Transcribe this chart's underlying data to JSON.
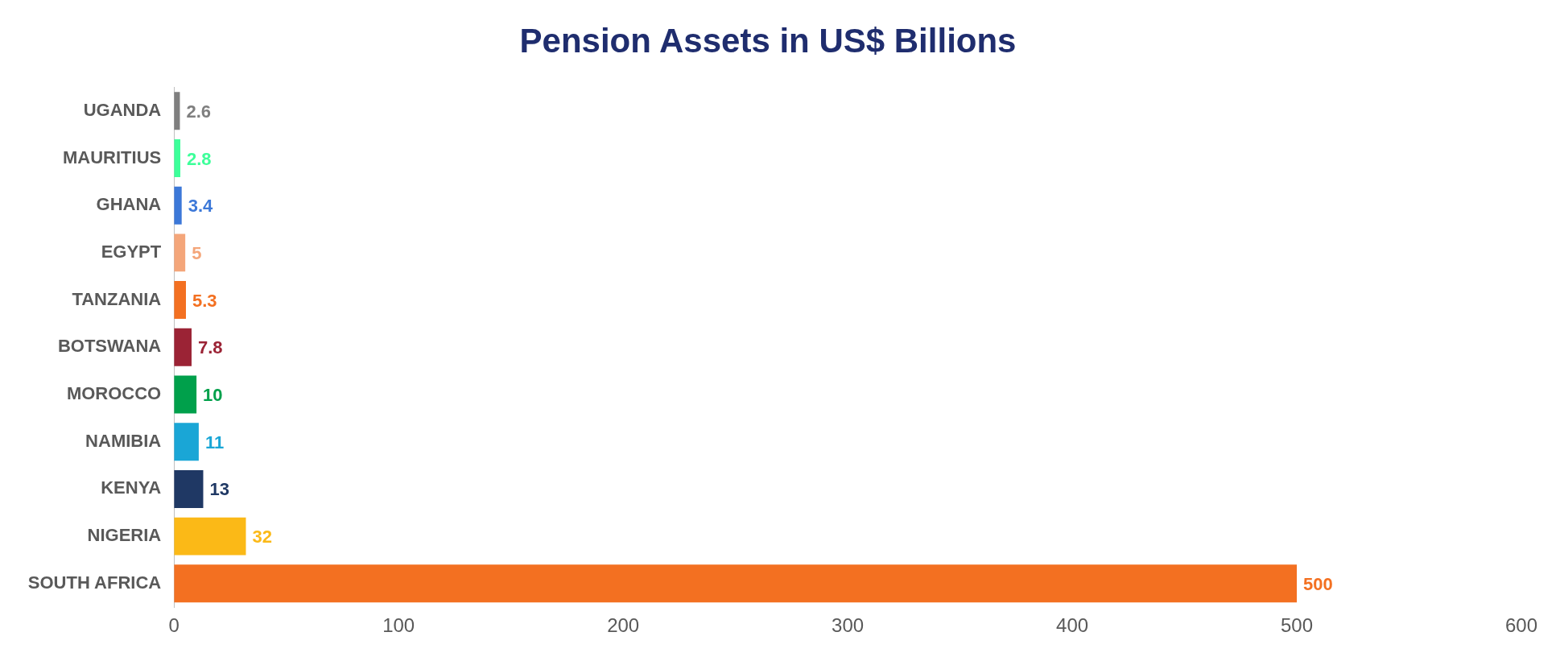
{
  "chart_data": {
    "type": "bar",
    "orientation": "horizontal",
    "title": "Pension Assets in US$ Billions",
    "categories": [
      "UGANDA",
      "MAURITIUS",
      "GHANA",
      "EGYPT",
      "TANZANIA",
      "BOTSWANA",
      "MOROCCO",
      "NAMIBIA",
      "KENYA",
      "NIGERIA",
      "SOUTH AFRICA"
    ],
    "values": [
      2.6,
      2.8,
      3.4,
      5,
      5.3,
      7.8,
      10,
      11,
      13,
      32,
      500
    ],
    "colors": [
      "#7f7f7f",
      "#3dff9a",
      "#3c78d8",
      "#f4a67a",
      "#f37021",
      "#9b2335",
      "#00a04b",
      "#1aa6d6",
      "#1f3864",
      "#fbb917",
      "#f37021"
    ],
    "xlim": [
      0,
      600
    ],
    "xticks": [
      0,
      100,
      200,
      300,
      400,
      500,
      600
    ],
    "grid": false,
    "legend": false,
    "data_labels": true
  }
}
